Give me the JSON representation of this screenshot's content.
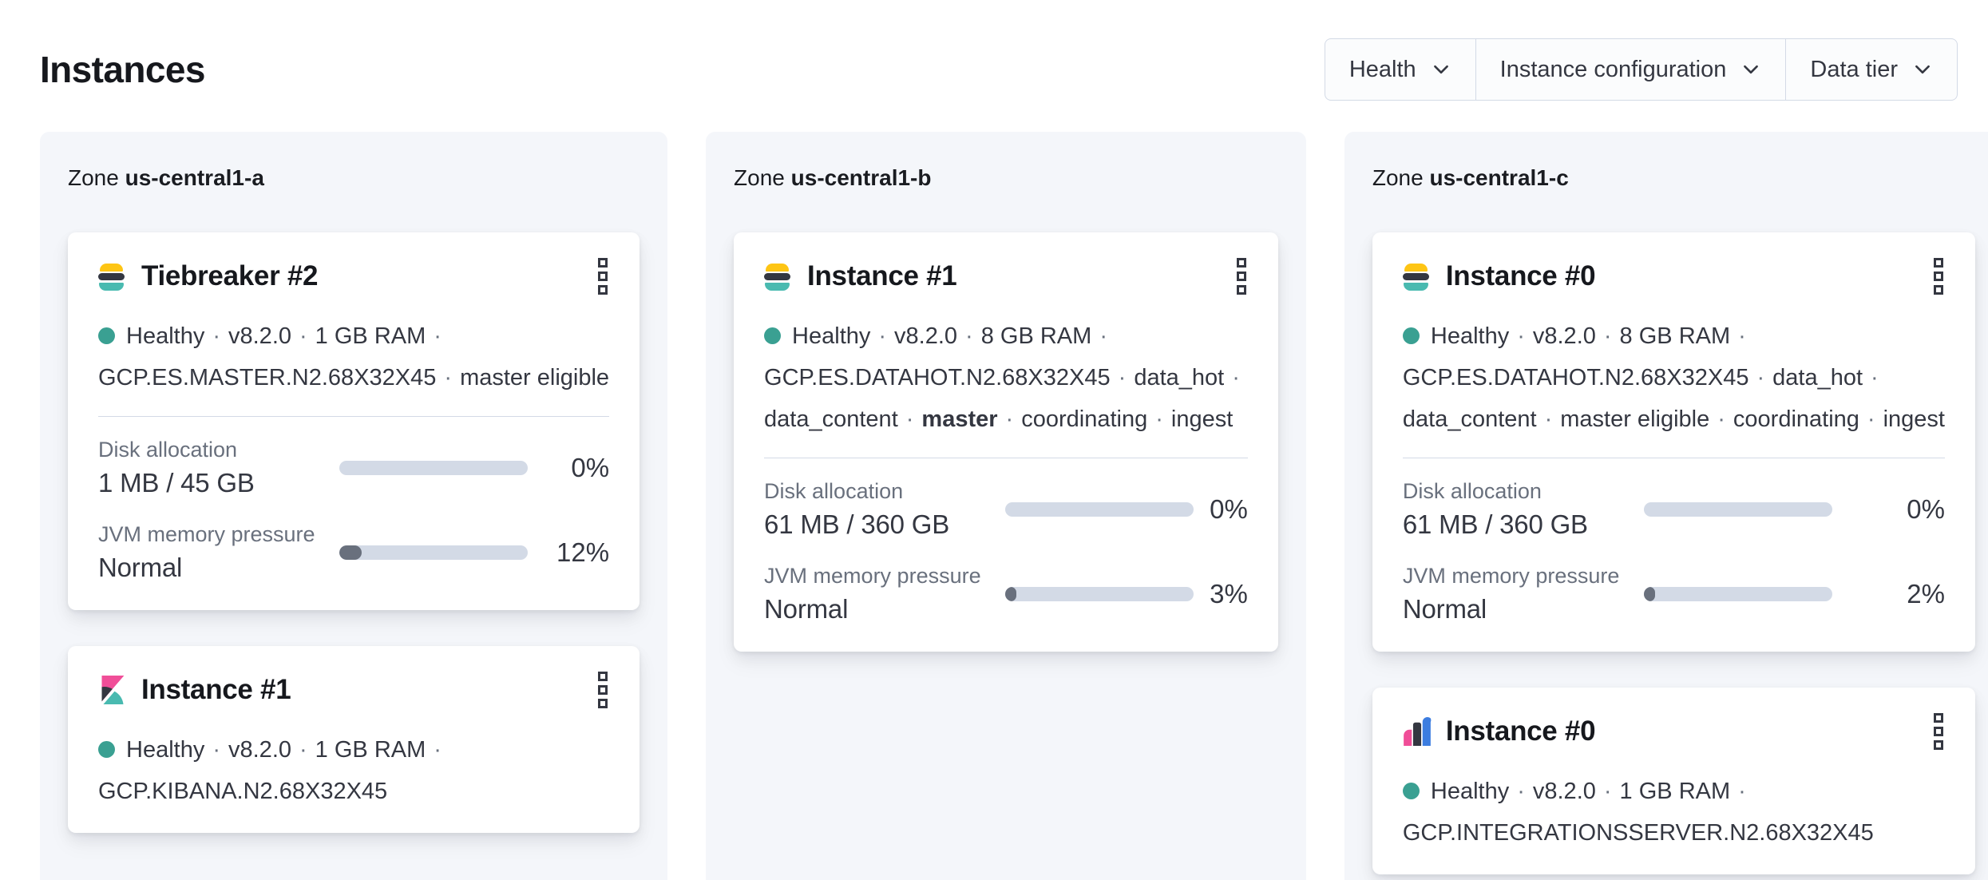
{
  "page": {
    "title": "Instances"
  },
  "filters": [
    {
      "label": "Health"
    },
    {
      "label": "Instance configuration"
    },
    {
      "label": "Data tier"
    }
  ],
  "colors": {
    "panel_bg": "#f4f6fa",
    "health_dot": "#3aa092",
    "progress_track": "#d3dae6",
    "progress_fill": "#69707d",
    "es_logo_yellow": "#fec514",
    "es_logo_dark": "#343741",
    "es_logo_teal": "#49bab0",
    "kibana_pink": "#f04e98",
    "integrations_blue": "#3c7de0"
  },
  "zones": [
    {
      "label_prefix": "Zone",
      "name": "us-central1-a",
      "cards": [
        {
          "logo": "elasticsearch",
          "title": "Tiebreaker #2",
          "status_lines": [
            {
              "health_dot": true,
              "trailing_sep": true,
              "segments": [
                {
                  "text": "Healthy"
                },
                {
                  "text": "v8.2.0"
                },
                {
                  "text": "1 GB RAM"
                }
              ]
            },
            {
              "health_dot": false,
              "trailing_sep": false,
              "segments": [
                {
                  "text": "GCP.ES.MASTER.N2.68X32X45"
                },
                {
                  "text": "master eligible"
                }
              ]
            }
          ],
          "metrics": [
            {
              "label": "Disk allocation",
              "value": "1 MB / 45 GB",
              "percent": "0%",
              "fill_pct": 0
            },
            {
              "label": "JVM memory pressure",
              "value": "Normal",
              "percent": "12%",
              "fill_pct": 12
            }
          ]
        },
        {
          "logo": "kibana",
          "title": "Instance #1",
          "status_lines": [
            {
              "health_dot": true,
              "trailing_sep": true,
              "segments": [
                {
                  "text": "Healthy"
                },
                {
                  "text": "v8.2.0"
                },
                {
                  "text": "1 GB RAM"
                }
              ]
            },
            {
              "health_dot": false,
              "trailing_sep": false,
              "segments": [
                {
                  "text": "GCP.KIBANA.N2.68X32X45"
                }
              ]
            }
          ],
          "metrics": []
        }
      ]
    },
    {
      "label_prefix": "Zone",
      "name": "us-central1-b",
      "cards": [
        {
          "logo": "elasticsearch",
          "title": "Instance #1",
          "status_lines": [
            {
              "health_dot": true,
              "trailing_sep": true,
              "segments": [
                {
                  "text": "Healthy"
                },
                {
                  "text": "v8.2.0"
                },
                {
                  "text": "8 GB RAM"
                }
              ]
            },
            {
              "health_dot": false,
              "trailing_sep": true,
              "segments": [
                {
                  "text": "GCP.ES.DATAHOT.N2.68X32X45"
                },
                {
                  "text": "data_hot"
                }
              ]
            },
            {
              "health_dot": false,
              "trailing_sep": false,
              "segments": [
                {
                  "text": "data_content"
                },
                {
                  "text": "master",
                  "bold": true
                },
                {
                  "text": "coordinating"
                },
                {
                  "text": "ingest"
                }
              ]
            }
          ],
          "metrics": [
            {
              "label": "Disk allocation",
              "value": "61 MB / 360 GB",
              "percent": "0%",
              "fill_pct": 0
            },
            {
              "label": "JVM memory pressure",
              "value": "Normal",
              "percent": "3%",
              "fill_pct": 3
            }
          ]
        }
      ]
    },
    {
      "label_prefix": "Zone",
      "name": "us-central1-c",
      "cards": [
        {
          "logo": "elasticsearch",
          "title": "Instance #0",
          "status_lines": [
            {
              "health_dot": true,
              "trailing_sep": true,
              "segments": [
                {
                  "text": "Healthy"
                },
                {
                  "text": "v8.2.0"
                },
                {
                  "text": "8 GB RAM"
                }
              ]
            },
            {
              "health_dot": false,
              "trailing_sep": true,
              "segments": [
                {
                  "text": "GCP.ES.DATAHOT.N2.68X32X45"
                },
                {
                  "text": "data_hot"
                }
              ]
            },
            {
              "health_dot": false,
              "trailing_sep": false,
              "segments": [
                {
                  "text": "data_content"
                },
                {
                  "text": "master eligible"
                },
                {
                  "text": "coordinating"
                },
                {
                  "text": "ingest"
                }
              ]
            }
          ],
          "metrics": [
            {
              "label": "Disk allocation",
              "value": "61 MB / 360 GB",
              "percent": "0%",
              "fill_pct": 0
            },
            {
              "label": "JVM memory pressure",
              "value": "Normal",
              "percent": "2%",
              "fill_pct": 2
            }
          ]
        },
        {
          "logo": "integrations-server",
          "title": "Instance #0",
          "status_lines": [
            {
              "health_dot": true,
              "trailing_sep": true,
              "segments": [
                {
                  "text": "Healthy"
                },
                {
                  "text": "v8.2.0"
                },
                {
                  "text": "1 GB RAM"
                }
              ]
            },
            {
              "health_dot": false,
              "trailing_sep": false,
              "segments": [
                {
                  "text": "GCP.INTEGRATIONSSERVER.N2.68X32X45"
                }
              ]
            }
          ],
          "metrics": []
        }
      ]
    }
  ]
}
